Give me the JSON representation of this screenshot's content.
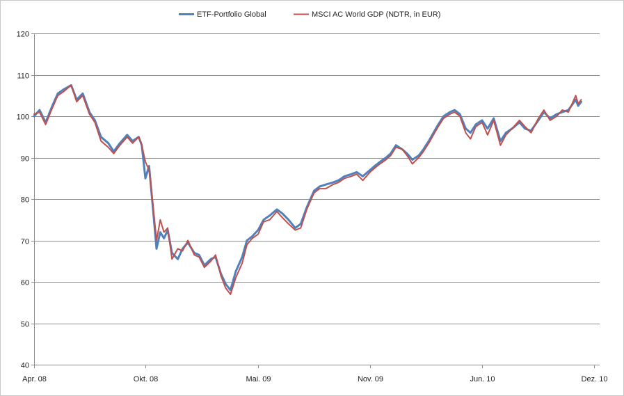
{
  "chart_data": {
    "type": "line",
    "title": "",
    "xlabel": "",
    "ylabel": "",
    "x_ticks": [
      "Apr. 08",
      "Okt. 08",
      "Mai. 09",
      "Nov. 09",
      "Jun. 10",
      "Dez. 10"
    ],
    "y_ticks": [
      40,
      50,
      60,
      70,
      80,
      90,
      100,
      110,
      120
    ],
    "ylim": [
      40,
      120
    ],
    "xlim": [
      "2008-04-01",
      "2010-12-01"
    ],
    "grid": "horizontal",
    "legend_position": "top-center",
    "series": [
      {
        "name": "ETF-Portfolio Global",
        "color": "#4F81BD",
        "points": [
          [
            "2008-04-01",
            100
          ],
          [
            "2008-04-10",
            101.5
          ],
          [
            "2008-04-20",
            98.5
          ],
          [
            "2008-05-01",
            102.5
          ],
          [
            "2008-05-10",
            105.5
          ],
          [
            "2008-05-20",
            106.5
          ],
          [
            "2008-06-01",
            107.5
          ],
          [
            "2008-06-10",
            104
          ],
          [
            "2008-06-20",
            105.5
          ],
          [
            "2008-07-01",
            101
          ],
          [
            "2008-07-10",
            99
          ],
          [
            "2008-07-20",
            95
          ],
          [
            "2008-08-01",
            93.5
          ],
          [
            "2008-08-10",
            91.5
          ],
          [
            "2008-08-20",
            93.5
          ],
          [
            "2008-09-01",
            95.5
          ],
          [
            "2008-09-10",
            94
          ],
          [
            "2008-09-20",
            95
          ],
          [
            "2008-09-25",
            93
          ],
          [
            "2008-10-01",
            85
          ],
          [
            "2008-10-08",
            88
          ],
          [
            "2008-10-15",
            78
          ],
          [
            "2008-10-22",
            68
          ],
          [
            "2008-10-29",
            72
          ],
          [
            "2008-11-05",
            70.5
          ],
          [
            "2008-11-12",
            72.5
          ],
          [
            "2008-11-20",
            67
          ],
          [
            "2008-12-01",
            65.5
          ],
          [
            "2008-12-10",
            68
          ],
          [
            "2008-12-20",
            69.5
          ],
          [
            "2009-01-01",
            67
          ],
          [
            "2009-01-10",
            66.5
          ],
          [
            "2009-01-20",
            64
          ],
          [
            "2009-02-01",
            65.5
          ],
          [
            "2009-02-10",
            66
          ],
          [
            "2009-02-20",
            62
          ],
          [
            "2009-03-01",
            59.5
          ],
          [
            "2009-03-10",
            58
          ],
          [
            "2009-03-20",
            62.5
          ],
          [
            "2009-04-01",
            66
          ],
          [
            "2009-04-10",
            70
          ],
          [
            "2009-04-20",
            71
          ],
          [
            "2009-05-01",
            72.5
          ],
          [
            "2009-05-10",
            75
          ],
          [
            "2009-05-20",
            76
          ],
          [
            "2009-06-01",
            77.5
          ],
          [
            "2009-06-10",
            76.5
          ],
          [
            "2009-06-20",
            75
          ],
          [
            "2009-07-01",
            73
          ],
          [
            "2009-07-10",
            74
          ],
          [
            "2009-07-20",
            78
          ],
          [
            "2009-08-01",
            82
          ],
          [
            "2009-08-10",
            83
          ],
          [
            "2009-08-20",
            83.5
          ],
          [
            "2009-09-01",
            84
          ],
          [
            "2009-09-10",
            84.5
          ],
          [
            "2009-09-20",
            85.5
          ],
          [
            "2009-10-01",
            86
          ],
          [
            "2009-10-10",
            86.5
          ],
          [
            "2009-10-20",
            85.5
          ],
          [
            "2009-11-01",
            87
          ],
          [
            "2009-11-10",
            88
          ],
          [
            "2009-11-20",
            89
          ],
          [
            "2009-12-01",
            90
          ],
          [
            "2009-12-10",
            91
          ],
          [
            "2009-12-20",
            93
          ],
          [
            "2010-01-01",
            92
          ],
          [
            "2010-01-10",
            91
          ],
          [
            "2010-01-20",
            89.5
          ],
          [
            "2010-02-01",
            90.5
          ],
          [
            "2010-02-10",
            92
          ],
          [
            "2010-02-20",
            94
          ],
          [
            "2010-03-01",
            96
          ],
          [
            "2010-03-10",
            98
          ],
          [
            "2010-03-20",
            100
          ],
          [
            "2010-04-01",
            101
          ],
          [
            "2010-04-10",
            101.5
          ],
          [
            "2010-04-20",
            100.5
          ],
          [
            "2010-05-01",
            97
          ],
          [
            "2010-05-10",
            96
          ],
          [
            "2010-05-20",
            98
          ],
          [
            "2010-06-01",
            99
          ],
          [
            "2010-06-10",
            97
          ],
          [
            "2010-06-20",
            99.5
          ],
          [
            "2010-07-01",
            94
          ],
          [
            "2010-07-10",
            96
          ],
          [
            "2010-07-20",
            97
          ],
          [
            "2010-08-01",
            98.5
          ],
          [
            "2010-08-10",
            97
          ],
          [
            "2010-08-20",
            96.5
          ],
          [
            "2010-09-01",
            99
          ],
          [
            "2010-09-10",
            101
          ],
          [
            "2010-09-20",
            99.5
          ],
          [
            "2010-10-01",
            100.5
          ],
          [
            "2010-10-10",
            101
          ],
          [
            "2010-10-20",
            101.5
          ],
          [
            "2010-11-01",
            104
          ],
          [
            "2010-11-05",
            102.5
          ],
          [
            "2010-11-10",
            103.5
          ]
        ]
      },
      {
        "name": "MSCI AC World GDP (NDTR, in EUR)",
        "color": "#C0504D",
        "points": [
          [
            "2008-04-01",
            100.5
          ],
          [
            "2008-04-10",
            101
          ],
          [
            "2008-04-20",
            98
          ],
          [
            "2008-05-01",
            102
          ],
          [
            "2008-05-10",
            105
          ],
          [
            "2008-05-20",
            106
          ],
          [
            "2008-06-01",
            107.5
          ],
          [
            "2008-06-10",
            103.5
          ],
          [
            "2008-06-20",
            105
          ],
          [
            "2008-07-01",
            100.5
          ],
          [
            "2008-07-10",
            98.5
          ],
          [
            "2008-07-20",
            94
          ],
          [
            "2008-08-01",
            92.5
          ],
          [
            "2008-08-10",
            91
          ],
          [
            "2008-08-20",
            93
          ],
          [
            "2008-09-01",
            95
          ],
          [
            "2008-09-10",
            93.5
          ],
          [
            "2008-09-20",
            95
          ],
          [
            "2008-09-25",
            93
          ],
          [
            "2008-10-01",
            89
          ],
          [
            "2008-10-08",
            87
          ],
          [
            "2008-10-15",
            79
          ],
          [
            "2008-10-22",
            70
          ],
          [
            "2008-10-29",
            75
          ],
          [
            "2008-11-05",
            72
          ],
          [
            "2008-11-12",
            73
          ],
          [
            "2008-11-20",
            65.5
          ],
          [
            "2008-12-01",
            68
          ],
          [
            "2008-12-10",
            67.5
          ],
          [
            "2008-12-20",
            70
          ],
          [
            "2009-01-01",
            66.5
          ],
          [
            "2009-01-10",
            66
          ],
          [
            "2009-01-20",
            63.5
          ],
          [
            "2009-02-01",
            65
          ],
          [
            "2009-02-10",
            66.5
          ],
          [
            "2009-02-20",
            61.5
          ],
          [
            "2009-03-01",
            58.5
          ],
          [
            "2009-03-10",
            57
          ],
          [
            "2009-03-20",
            61
          ],
          [
            "2009-04-01",
            64.5
          ],
          [
            "2009-04-10",
            69
          ],
          [
            "2009-04-20",
            70.5
          ],
          [
            "2009-05-01",
            71.5
          ],
          [
            "2009-05-10",
            74.5
          ],
          [
            "2009-05-20",
            75
          ],
          [
            "2009-06-01",
            77
          ],
          [
            "2009-06-10",
            75.5
          ],
          [
            "2009-06-20",
            74
          ],
          [
            "2009-07-01",
            72.5
          ],
          [
            "2009-07-10",
            73
          ],
          [
            "2009-07-20",
            77.5
          ],
          [
            "2009-08-01",
            81.5
          ],
          [
            "2009-08-10",
            82.5
          ],
          [
            "2009-08-20",
            82.5
          ],
          [
            "2009-09-01",
            83.5
          ],
          [
            "2009-09-10",
            84
          ],
          [
            "2009-09-20",
            85
          ],
          [
            "2009-10-01",
            85.5
          ],
          [
            "2009-10-10",
            86
          ],
          [
            "2009-10-20",
            84.5
          ],
          [
            "2009-11-01",
            86.5
          ],
          [
            "2009-11-10",
            87.5
          ],
          [
            "2009-11-20",
            88.5
          ],
          [
            "2009-12-01",
            89.5
          ],
          [
            "2009-12-10",
            90.5
          ],
          [
            "2009-12-20",
            92.5
          ],
          [
            "2010-01-01",
            92
          ],
          [
            "2010-01-10",
            90.5
          ],
          [
            "2010-01-20",
            88.5
          ],
          [
            "2010-02-01",
            90
          ],
          [
            "2010-02-10",
            91.5
          ],
          [
            "2010-02-20",
            93.5
          ],
          [
            "2010-03-01",
            95.5
          ],
          [
            "2010-03-10",
            97.5
          ],
          [
            "2010-03-20",
            99.5
          ],
          [
            "2010-04-01",
            100.5
          ],
          [
            "2010-04-10",
            101
          ],
          [
            "2010-04-20",
            100
          ],
          [
            "2010-05-01",
            96
          ],
          [
            "2010-05-10",
            94.5
          ],
          [
            "2010-05-20",
            97.5
          ],
          [
            "2010-06-01",
            98.5
          ],
          [
            "2010-06-10",
            95.5
          ],
          [
            "2010-06-20",
            99
          ],
          [
            "2010-07-01",
            93
          ],
          [
            "2010-07-10",
            95.5
          ],
          [
            "2010-07-20",
            97
          ],
          [
            "2010-08-01",
            99
          ],
          [
            "2010-08-10",
            97.5
          ],
          [
            "2010-08-20",
            96
          ],
          [
            "2010-09-01",
            99.5
          ],
          [
            "2010-09-10",
            101.5
          ],
          [
            "2010-09-20",
            99
          ],
          [
            "2010-10-01",
            100
          ],
          [
            "2010-10-10",
            101.5
          ],
          [
            "2010-10-20",
            101
          ],
          [
            "2010-11-01",
            105
          ],
          [
            "2010-11-05",
            103
          ],
          [
            "2010-11-10",
            104
          ]
        ]
      }
    ]
  }
}
